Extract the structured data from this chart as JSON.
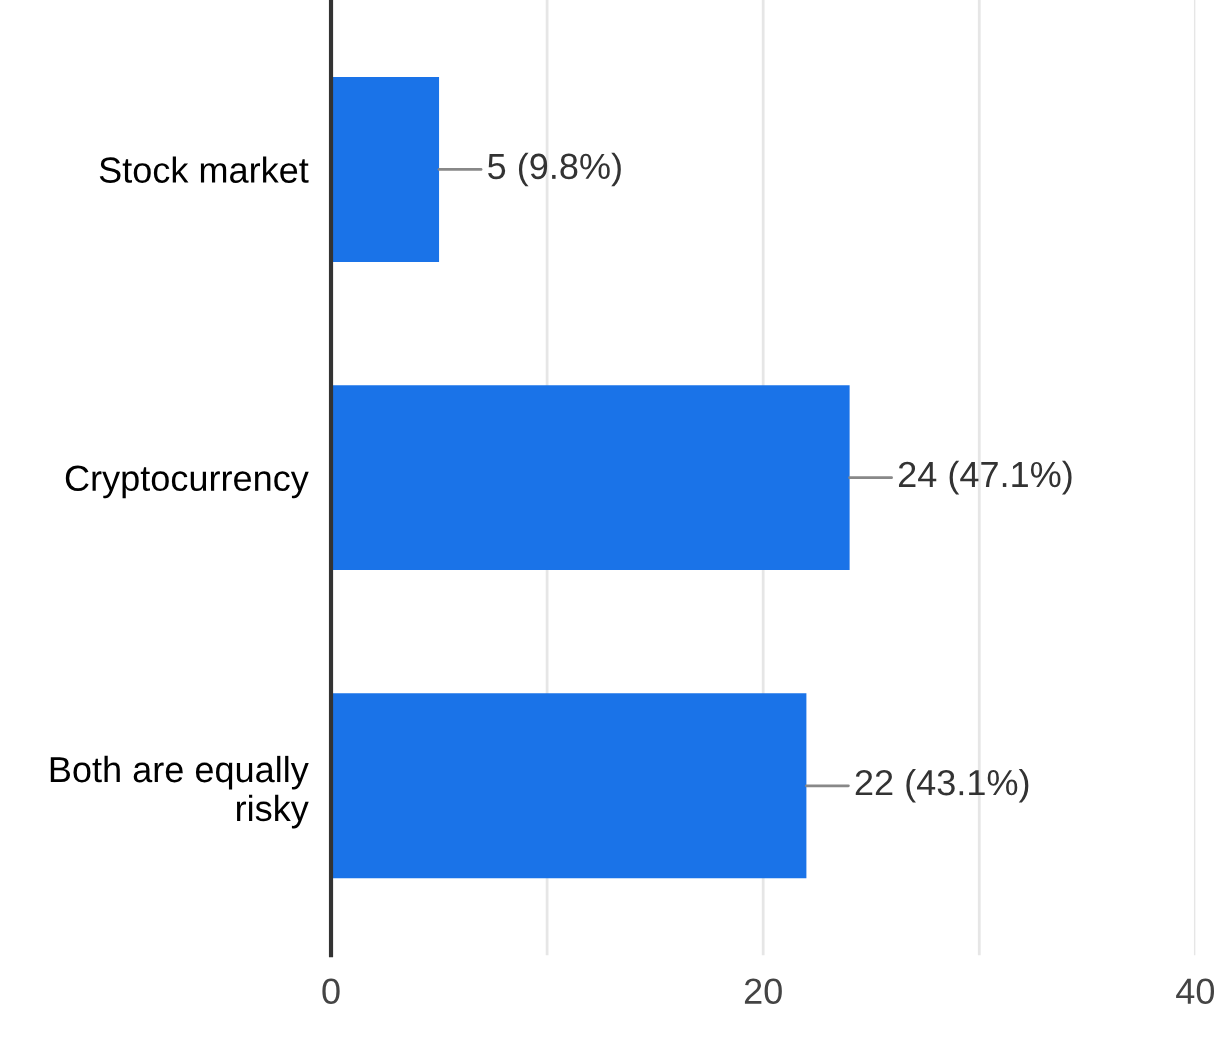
{
  "chart_data": {
    "type": "bar",
    "orientation": "horizontal",
    "categories": [
      "Stock market",
      "Cryptocurrency",
      "Both are equally risky"
    ],
    "values": [
      5,
      24,
      22
    ],
    "color": "#1a73e8",
    "value_labels": [
      "5 (9.8%)",
      "24 (47.1%)",
      "22 (43.1%)"
    ],
    "xlim": [
      0,
      40
    ],
    "xticks": [
      0,
      {
        "value": 10,
        "label": null
      },
      20,
      {
        "value": 30,
        "label": null
      },
      40
    ],
    "grid": "x",
    "legend": false
  }
}
